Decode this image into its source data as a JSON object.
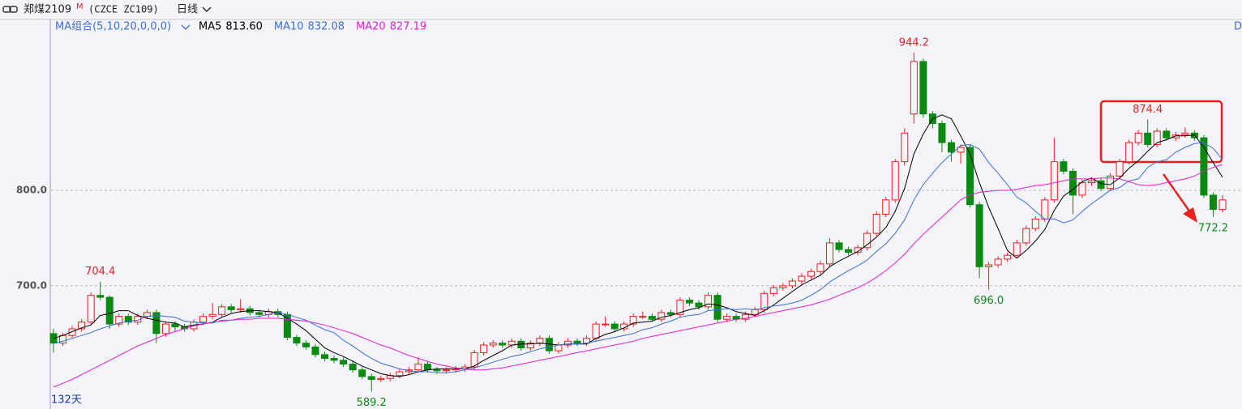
{
  "chart_data": {
    "type": "candlestick",
    "instrument": "郑煤2109",
    "badge": "M",
    "code": "(CZCE ZC109)",
    "period": "日线",
    "indicator_group": "MA组合(5,10,20,0,0,0)",
    "corner_label": "D",
    "day_count": "132天",
    "up_color": "#e8211d",
    "down_color": "#0b8a12",
    "grid": true,
    "ylim": [
      571,
      979
    ],
    "yticks": [
      {
        "value": 800,
        "label": "800.0"
      },
      {
        "value": 700,
        "label": "700.0"
      }
    ],
    "ohlc": [
      [
        650,
        655,
        630,
        640
      ],
      [
        640,
        651,
        637,
        648
      ],
      [
        648,
        658,
        645,
        655
      ],
      [
        655,
        665,
        652,
        662
      ],
      [
        662,
        693,
        659,
        690
      ],
      [
        690,
        704.4,
        685,
        688
      ],
      [
        688,
        690,
        655,
        660
      ],
      [
        660,
        671,
        657,
        668
      ],
      [
        668,
        671,
        659,
        662
      ],
      [
        662,
        671,
        659,
        668
      ],
      [
        668,
        675,
        665,
        672
      ],
      [
        672,
        675,
        640,
        650
      ],
      [
        650,
        663,
        647,
        660
      ],
      [
        660,
        663,
        652,
        657
      ],
      [
        657,
        660,
        652,
        655
      ],
      [
        655,
        665,
        652,
        662
      ],
      [
        662,
        671,
        659,
        668
      ],
      [
        668,
        682,
        665,
        670
      ],
      [
        670,
        681,
        667,
        678
      ],
      [
        678,
        681,
        672,
        675
      ],
      [
        675,
        686,
        672,
        676
      ],
      [
        676,
        679,
        669,
        672
      ],
      [
        672,
        675,
        667,
        670
      ],
      [
        670,
        676,
        667,
        673
      ],
      [
        673,
        676,
        667,
        670
      ],
      [
        670,
        673,
        643,
        646
      ],
      [
        646,
        649,
        637,
        640
      ],
      [
        640,
        643,
        633,
        636
      ],
      [
        636,
        639,
        625,
        628
      ],
      [
        628,
        631,
        621,
        624
      ],
      [
        624,
        627,
        619,
        622
      ],
      [
        622,
        625,
        615,
        618
      ],
      [
        618,
        621,
        609,
        612
      ],
      [
        612,
        615,
        602,
        605
      ],
      [
        605,
        608,
        589.2,
        602
      ],
      [
        602,
        606,
        599,
        603
      ],
      [
        603,
        609,
        600,
        606
      ],
      [
        606,
        613,
        603,
        610
      ],
      [
        610,
        615,
        607,
        612
      ],
      [
        612,
        625,
        609,
        618
      ],
      [
        618,
        621,
        609,
        612
      ],
      [
        612,
        615,
        608,
        611
      ],
      [
        611,
        615,
        608,
        612
      ],
      [
        612,
        616,
        609,
        613
      ],
      [
        613,
        618,
        610,
        615
      ],
      [
        615,
        633,
        612,
        630
      ],
      [
        630,
        641,
        627,
        638
      ],
      [
        638,
        643,
        635,
        640
      ],
      [
        640,
        643,
        635,
        638
      ],
      [
        638,
        645,
        635,
        642
      ],
      [
        642,
        645,
        632,
        635
      ],
      [
        635,
        643,
        632,
        640
      ],
      [
        640,
        648,
        637,
        645
      ],
      [
        645,
        648,
        629,
        632
      ],
      [
        632,
        641,
        629,
        638
      ],
      [
        638,
        645,
        635,
        642
      ],
      [
        642,
        645,
        637,
        640
      ],
      [
        640,
        648,
        637,
        645
      ],
      [
        645,
        663,
        642,
        660
      ],
      [
        660,
        668,
        657,
        660
      ],
      [
        660,
        663,
        652,
        655
      ],
      [
        655,
        663,
        652,
        660
      ],
      [
        660,
        671,
        657,
        668
      ],
      [
        668,
        673,
        665,
        668
      ],
      [
        668,
        671,
        662,
        665
      ],
      [
        665,
        675,
        662,
        672
      ],
      [
        672,
        675,
        667,
        670
      ],
      [
        670,
        688,
        667,
        685
      ],
      [
        685,
        688,
        679,
        682
      ],
      [
        682,
        685,
        675,
        678
      ],
      [
        678,
        693,
        675,
        690
      ],
      [
        690,
        693,
        662,
        665
      ],
      [
        665,
        671,
        662,
        668
      ],
      [
        668,
        671,
        662,
        665
      ],
      [
        665,
        673,
        662,
        670
      ],
      [
        670,
        678,
        667,
        675
      ],
      [
        675,
        695,
        672,
        692
      ],
      [
        692,
        701,
        689,
        698
      ],
      [
        698,
        703,
        695,
        700
      ],
      [
        700,
        708,
        697,
        705
      ],
      [
        705,
        713,
        702,
        710
      ],
      [
        710,
        718,
        707,
        715
      ],
      [
        715,
        726,
        712,
        723
      ],
      [
        723,
        750,
        720,
        745
      ],
      [
        745,
        748,
        735,
        738
      ],
      [
        738,
        741,
        732,
        735
      ],
      [
        735,
        743,
        732,
        740
      ],
      [
        740,
        758,
        737,
        755
      ],
      [
        755,
        778,
        752,
        775
      ],
      [
        775,
        793,
        772,
        790
      ],
      [
        790,
        833,
        787,
        830
      ],
      [
        830,
        865,
        826,
        860
      ],
      [
        880,
        944.2,
        870,
        935
      ],
      [
        935,
        938,
        876,
        880
      ],
      [
        880,
        883,
        865,
        870
      ],
      [
        870,
        873,
        840,
        850
      ],
      [
        850,
        853,
        830,
        840
      ],
      [
        840,
        848,
        828,
        845
      ],
      [
        845,
        848,
        782,
        785
      ],
      [
        785,
        788,
        708,
        720
      ],
      [
        720,
        725,
        696,
        722
      ],
      [
        722,
        731,
        719,
        728
      ],
      [
        728,
        735,
        725,
        732
      ],
      [
        732,
        748,
        729,
        745
      ],
      [
        745,
        763,
        742,
        760
      ],
      [
        760,
        773,
        757,
        770
      ],
      [
        770,
        793,
        767,
        790
      ],
      [
        790,
        855,
        787,
        830
      ],
      [
        830,
        833,
        817,
        820
      ],
      [
        820,
        823,
        775,
        795
      ],
      [
        795,
        811,
        792,
        808
      ],
      [
        808,
        813,
        805,
        810
      ],
      [
        810,
        813,
        799,
        802
      ],
      [
        802,
        818,
        799,
        815
      ],
      [
        815,
        833,
        812,
        830
      ],
      [
        830,
        853,
        827,
        850
      ],
      [
        850,
        863,
        847,
        860
      ],
      [
        860,
        874.4,
        845,
        848
      ],
      [
        848,
        865,
        845,
        862
      ],
      [
        862,
        865,
        852,
        855
      ],
      [
        855,
        861,
        852,
        858
      ],
      [
        858,
        866,
        855,
        860
      ],
      [
        860,
        863,
        852,
        855
      ],
      [
        855,
        858,
        792,
        795
      ],
      [
        795,
        798,
        772.2,
        780
      ],
      [
        780,
        795,
        777,
        790
      ]
    ],
    "series": [
      {
        "name": "MA5",
        "color": "#000000",
        "legend_value": "813.60",
        "values": [
          645,
          648,
          652,
          656,
          659,
          669,
          671,
          674,
          674,
          669,
          666,
          664,
          662,
          661,
          657,
          659,
          660,
          662,
          667,
          671,
          673,
          674,
          674,
          673,
          672,
          666,
          660,
          653,
          644,
          635,
          630,
          626,
          621,
          616,
          612,
          608,
          606,
          605,
          607,
          610,
          612,
          613,
          613,
          613,
          613,
          616,
          622,
          627,
          632,
          638,
          639,
          639,
          640,
          639,
          638,
          639,
          639,
          639,
          645,
          649,
          652,
          656,
          661,
          662,
          663,
          667,
          669,
          672,
          675,
          677,
          681,
          680,
          677,
          673,
          671,
          669,
          674,
          680,
          687,
          694,
          701,
          706,
          711,
          720,
          726,
          731,
          736,
          743,
          751,
          761,
          778,
          802,
          838,
          859,
          875,
          879,
          875,
          857,
          838,
          808,
          782,
          760,
          737,
          729,
          737,
          747,
          759,
          779,
          794,
          801,
          809,
          813,
          807,
          806,
          813,
          823,
          831,
          841,
          850,
          853,
          857,
          857,
          858,
          845,
          829,
          813.6
        ]
      },
      {
        "name": "MA10",
        "color": "#3a6fd8",
        "legend_value": "832.08",
        "values": [
          640,
          642,
          645,
          648,
          651,
          655,
          658,
          661,
          663,
          664,
          668,
          669,
          668,
          667,
          663,
          662,
          661,
          661,
          664,
          664,
          666,
          667,
          668,
          670,
          672,
          670,
          667,
          664,
          659,
          654,
          651,
          643,
          637,
          630,
          624,
          619,
          616,
          613,
          611,
          610,
          610,
          609,
          609,
          610,
          612,
          614,
          617,
          620,
          623,
          626,
          628,
          631,
          634,
          636,
          638,
          639,
          639,
          640,
          642,
          644,
          646,
          648,
          650,
          654,
          656,
          660,
          663,
          667,
          669,
          670,
          674,
          675,
          676,
          675,
          676,
          675,
          677,
          679,
          680,
          682,
          685,
          690,
          696,
          704,
          710,
          716,
          721,
          727,
          736,
          744,
          755,
          769,
          790,
          806,
          818,
          829,
          838,
          847,
          848,
          843,
          829,
          818,
          806,
          793,
          787,
          778,
          770,
          770,
          766,
          769,
          778,
          786,
          793,
          800,
          803,
          810,
          812,
          824,
          830,
          832,
          840,
          845,
          849,
          850,
          844,
          832.08
        ]
      },
      {
        "name": "MA20",
        "color": "#e020d0",
        "legend_value": "827.19",
        "values": [
          594,
          598,
          602,
          607,
          612,
          617,
          622,
          627,
          632,
          637,
          641,
          645,
          649,
          652,
          655,
          658,
          660,
          662,
          663,
          664,
          665,
          665,
          666,
          666,
          666,
          665,
          664,
          663,
          661,
          659,
          656,
          653,
          650,
          646,
          642,
          638,
          635,
          631,
          627,
          624,
          621,
          618,
          616,
          614,
          613,
          612,
          612,
          613,
          614,
          616,
          618,
          620,
          622,
          624,
          626,
          628,
          630,
          632,
          634,
          636,
          638,
          640,
          642,
          645,
          647,
          649,
          651,
          653,
          655,
          657,
          659,
          661,
          663,
          665,
          666,
          668,
          670,
          672,
          674,
          676,
          678,
          680,
          683,
          686,
          690,
          694,
          698,
          703,
          709,
          716,
          724,
          733,
          744,
          754,
          763,
          772,
          781,
          790,
          795,
          798,
          799,
          800,
          800,
          801,
          803,
          805,
          806,
          808,
          810,
          812,
          812,
          812,
          813,
          813,
          812,
          809,
          806,
          805,
          806,
          808,
          810,
          812,
          815,
          820,
          824,
          827.19
        ]
      }
    ],
    "annotations": [
      {
        "text": "704.4",
        "value": 704.4
      },
      {
        "text": "589.2",
        "value": 589.2
      },
      {
        "text": "944.2",
        "value": 944.2
      },
      {
        "text": "696.0",
        "value": 696
      },
      {
        "text": "874.4",
        "value": 874.4
      },
      {
        "text": "772.2",
        "value": 772.2
      }
    ]
  }
}
